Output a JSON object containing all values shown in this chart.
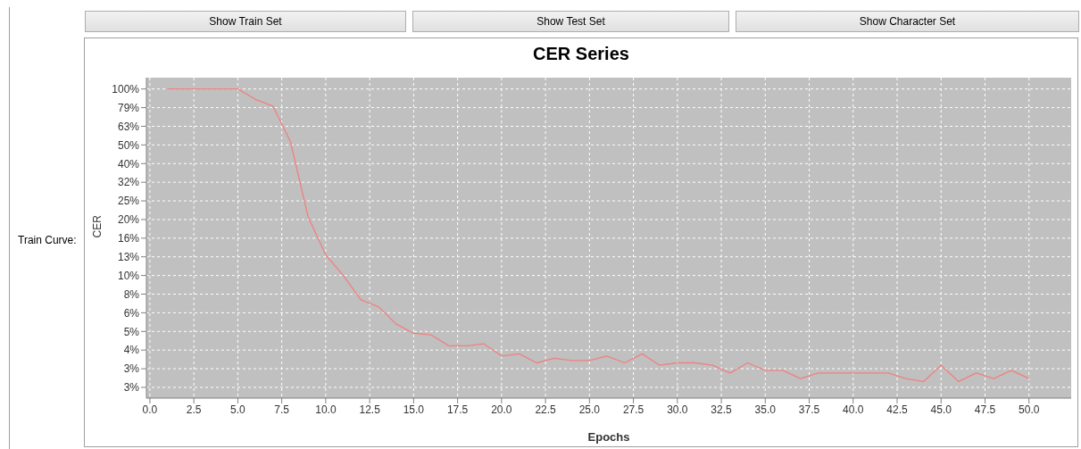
{
  "chart_data": {
    "type": "line",
    "title": "CER Series",
    "xlabel": "Epochs",
    "ylabel": "CER",
    "annotations": [
      "Show Train Set",
      "Show Test Set",
      "Show Character Set",
      "Train Curve:"
    ],
    "x": [
      1,
      2,
      3,
      4,
      5,
      6,
      7,
      8,
      9,
      10,
      11,
      12,
      13,
      14,
      15,
      16,
      17,
      18,
      19,
      20,
      21,
      22,
      23,
      24,
      25,
      26,
      27,
      28,
      29,
      30,
      31,
      32,
      33,
      34,
      35,
      36,
      37,
      38,
      39,
      40,
      41,
      42,
      43,
      44,
      45,
      46,
      47,
      48,
      49,
      50
    ],
    "series": [
      {
        "color": "#f08080",
        "values": [
          100,
          100,
          100,
          100,
          100,
          88,
          81,
          52,
          20.6,
          12.9,
          10,
          7.4,
          6.8,
          5.5,
          4.9,
          4.8,
          4.2,
          4.2,
          4.3,
          3.7,
          3.8,
          3.4,
          3.6,
          3.5,
          3.5,
          3.7,
          3.4,
          3.8,
          3.3,
          3.4,
          3.4,
          3.3,
          3.0,
          3.4,
          3.1,
          3.1,
          2.8,
          3.0,
          3.0,
          3.0,
          3.0,
          3.0,
          2.8,
          2.7,
          3.3,
          2.7,
          3.0,
          2.8,
          3.1,
          2.8
        ]
      }
    ],
    "log": "y",
    "grid": true,
    "marker": "none",
    "line_style": "solid",
    "legend": false,
    "xlim": [
      -0.2,
      52.4
    ],
    "xticks": [
      {
        "value": 0,
        "label": "0.0"
      },
      {
        "value": 2.5,
        "label": "2.5"
      },
      {
        "value": 5,
        "label": "5.0"
      },
      {
        "value": 7.5,
        "label": "7.5"
      },
      {
        "value": 10,
        "label": "10.0"
      },
      {
        "value": 12.5,
        "label": "12.5"
      },
      {
        "value": 15,
        "label": "15.0"
      },
      {
        "value": 17.5,
        "label": "17.5"
      },
      {
        "value": 20,
        "label": "20.0"
      },
      {
        "value": 22.5,
        "label": "22.5"
      },
      {
        "value": 25,
        "label": "25.0"
      },
      {
        "value": 27.5,
        "label": "27.5"
      },
      {
        "value": 30,
        "label": "30.0"
      },
      {
        "value": 32.5,
        "label": "32.5"
      },
      {
        "value": 35,
        "label": "35.0"
      },
      {
        "value": 37.5,
        "label": "37.5"
      },
      {
        "value": 40,
        "label": "40.0"
      },
      {
        "value": 42.5,
        "label": "42.5"
      },
      {
        "value": 45,
        "label": "45.0"
      },
      {
        "value": 47.5,
        "label": "47.5"
      },
      {
        "value": 50,
        "label": "50.0"
      }
    ],
    "ylim": [
      2.2,
      115
    ],
    "yticks": [
      {
        "value": 100,
        "label": "100%"
      },
      {
        "value": 79.43,
        "label": "79%"
      },
      {
        "value": 63.1,
        "label": "63%"
      },
      {
        "value": 50.12,
        "label": "50%"
      },
      {
        "value": 39.81,
        "label": "40%"
      },
      {
        "value": 31.62,
        "label": "32%"
      },
      {
        "value": 25.12,
        "label": "25%"
      },
      {
        "value": 19.95,
        "label": "20%"
      },
      {
        "value": 15.85,
        "label": "16%"
      },
      {
        "value": 12.59,
        "label": "13%"
      },
      {
        "value": 10,
        "label": "10%"
      },
      {
        "value": 7.943,
        "label": "8%"
      },
      {
        "value": 6.31,
        "label": "6%"
      },
      {
        "value": 5.012,
        "label": "5%"
      },
      {
        "value": 3.981,
        "label": "4%"
      },
      {
        "value": 3.162,
        "label": "3%"
      },
      {
        "value": 2.512,
        "label": "3%"
      }
    ]
  }
}
